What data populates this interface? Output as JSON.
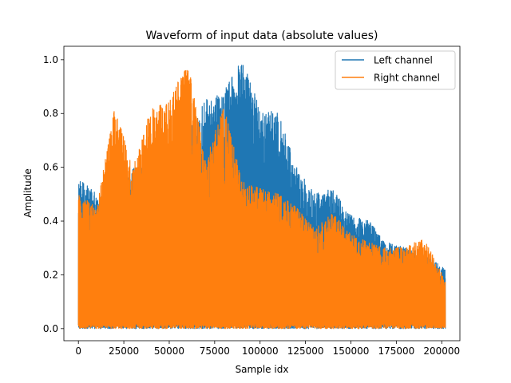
{
  "chart_data": {
    "type": "line",
    "title": "Waveform of input data (absolute values)",
    "xlabel": "Sample idx",
    "ylabel": "Amplitude",
    "xlim": [
      -8000,
      210000
    ],
    "ylim": [
      -0.045,
      1.05
    ],
    "x_ticks": [
      0,
      25000,
      50000,
      75000,
      100000,
      125000,
      150000,
      175000,
      200000
    ],
    "x_tick_labels": [
      "0",
      "25000",
      "50000",
      "75000",
      "100000",
      "125000",
      "150000",
      "175000",
      "200000"
    ],
    "y_ticks": [
      0.0,
      0.2,
      0.4,
      0.6,
      0.8,
      1.0
    ],
    "y_tick_labels": [
      "0.0",
      "0.2",
      "0.4",
      "0.6",
      "0.8",
      "1.0"
    ],
    "grid": false,
    "legend_position": "upper right",
    "x_range": [
      0,
      202000
    ],
    "series": [
      {
        "name": "Left channel",
        "color": "#1f77b4",
        "envelope": {
          "x": [
            0,
            10000,
            20000,
            30000,
            40000,
            50000,
            60000,
            70000,
            80000,
            90000,
            100000,
            110000,
            120000,
            130000,
            140000,
            150000,
            160000,
            170000,
            180000,
            190000,
            202000
          ],
          "y": [
            0.56,
            0.5,
            0.48,
            0.6,
            0.6,
            0.65,
            0.72,
            0.85,
            0.88,
            1.0,
            0.82,
            0.8,
            0.6,
            0.5,
            0.52,
            0.42,
            0.4,
            0.32,
            0.3,
            0.28,
            0.22
          ]
        }
      },
      {
        "name": "Right channel",
        "color": "#ff7f0e",
        "envelope": {
          "x": [
            0,
            10000,
            20000,
            30000,
            40000,
            50000,
            60000,
            70000,
            80000,
            90000,
            100000,
            110000,
            120000,
            130000,
            140000,
            150000,
            160000,
            170000,
            180000,
            190000,
            202000
          ],
          "y": [
            0.5,
            0.45,
            0.82,
            0.6,
            0.82,
            0.84,
            1.0,
            0.62,
            0.83,
            0.55,
            0.52,
            0.5,
            0.45,
            0.37,
            0.43,
            0.35,
            0.32,
            0.3,
            0.3,
            0.34,
            0.18
          ]
        }
      }
    ]
  }
}
